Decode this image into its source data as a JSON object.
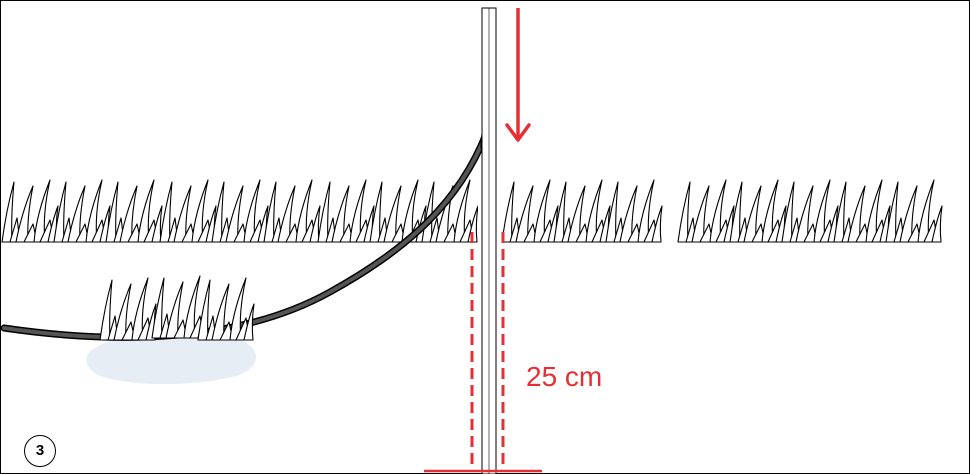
{
  "diagram": {
    "step_number": "3",
    "measurement_label": "25 cm",
    "colors": {
      "accent": "#e52f35",
      "outline": "#000000",
      "cable": "#555555",
      "shadow": "#e6edf5"
    },
    "icons": [
      "down-arrow-icon",
      "grass-icon"
    ]
  }
}
